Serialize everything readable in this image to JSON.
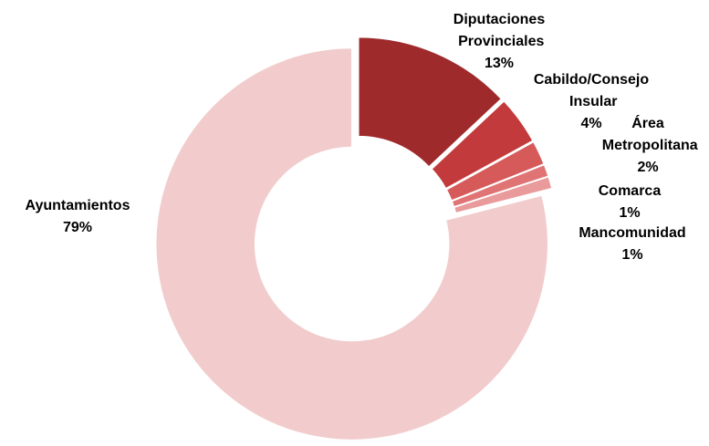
{
  "chart_data": {
    "type": "donut",
    "categories": [
      "Diputaciones Provinciales",
      "Cabildo/Consejo Insular",
      "Área Metropolitana",
      "Comarca",
      "Mancomunidad",
      "Ayuntamientos"
    ],
    "values": [
      13,
      4,
      2,
      1,
      1,
      79
    ],
    "value_labels": [
      "13%",
      "4%",
      "2%",
      "1%",
      "1%",
      "79%"
    ],
    "colors": [
      "#9f2a2c",
      "#c23a3c",
      "#d65a5a",
      "#e07474",
      "#e99a9a",
      "#f2cccc"
    ]
  }
}
